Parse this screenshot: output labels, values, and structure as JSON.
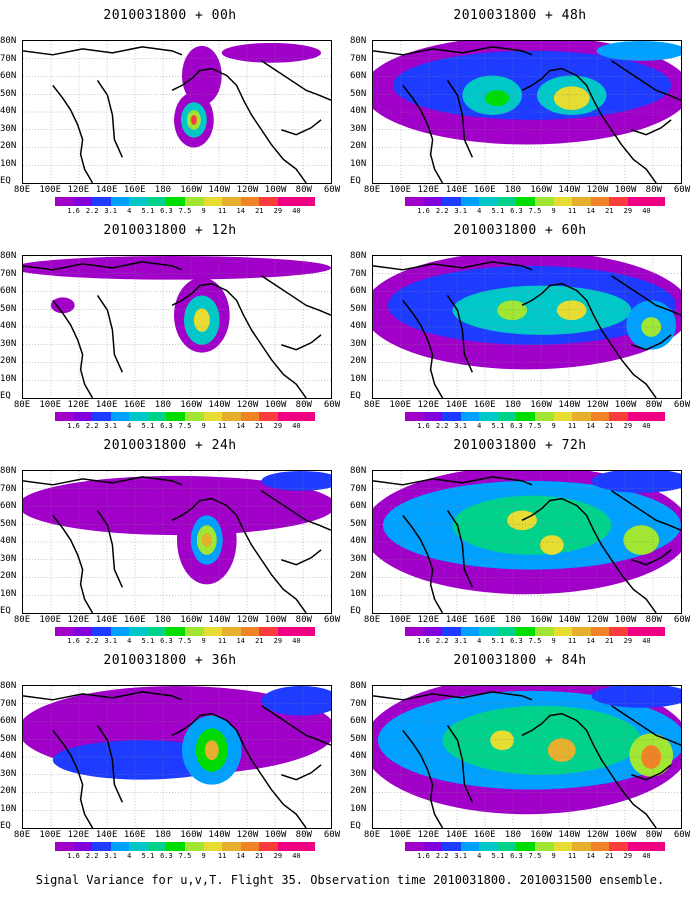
{
  "panels": [
    {
      "title": "2010031800 + 00h",
      "lead": 0
    },
    {
      "title": "2010031800 + 12h",
      "lead": 12
    },
    {
      "title": "2010031800 + 24h",
      "lead": 24
    },
    {
      "title": "2010031800 + 36h",
      "lead": 36
    },
    {
      "title": "2010031800 + 48h",
      "lead": 48
    },
    {
      "title": "2010031800 + 60h",
      "lead": 60
    },
    {
      "title": "2010031800 + 72h",
      "lead": 72
    },
    {
      "title": "2010031800 + 84h",
      "lead": 84
    }
  ],
  "lat_labels": [
    "80N",
    "70N",
    "60N",
    "50N",
    "40N",
    "30N",
    "20N",
    "10N",
    "EQ"
  ],
  "lon_labels": [
    "80E",
    "100E",
    "120E",
    "140E",
    "160E",
    "180",
    "160W",
    "140W",
    "120W",
    "100W",
    "80W",
    "60W"
  ],
  "colorbar": {
    "levels": [
      "1.6",
      "2.2",
      "3.1",
      "4",
      "5.1",
      "6.3",
      "7.5",
      "9",
      "11",
      "14",
      "21",
      "29",
      "40"
    ],
    "colors": [
      "#a000c8",
      "#8200dc",
      "#1e3cff",
      "#00a0ff",
      "#00c8c8",
      "#00d28c",
      "#00dc00",
      "#a0e632",
      "#e6dc32",
      "#e6af2d",
      "#f08228",
      "#fa3c3c",
      "#f00082"
    ]
  },
  "footer": "Signal Variance for u,v,T. Flight 35. Observation time 2010031800. 2010031500 ensemble."
}
